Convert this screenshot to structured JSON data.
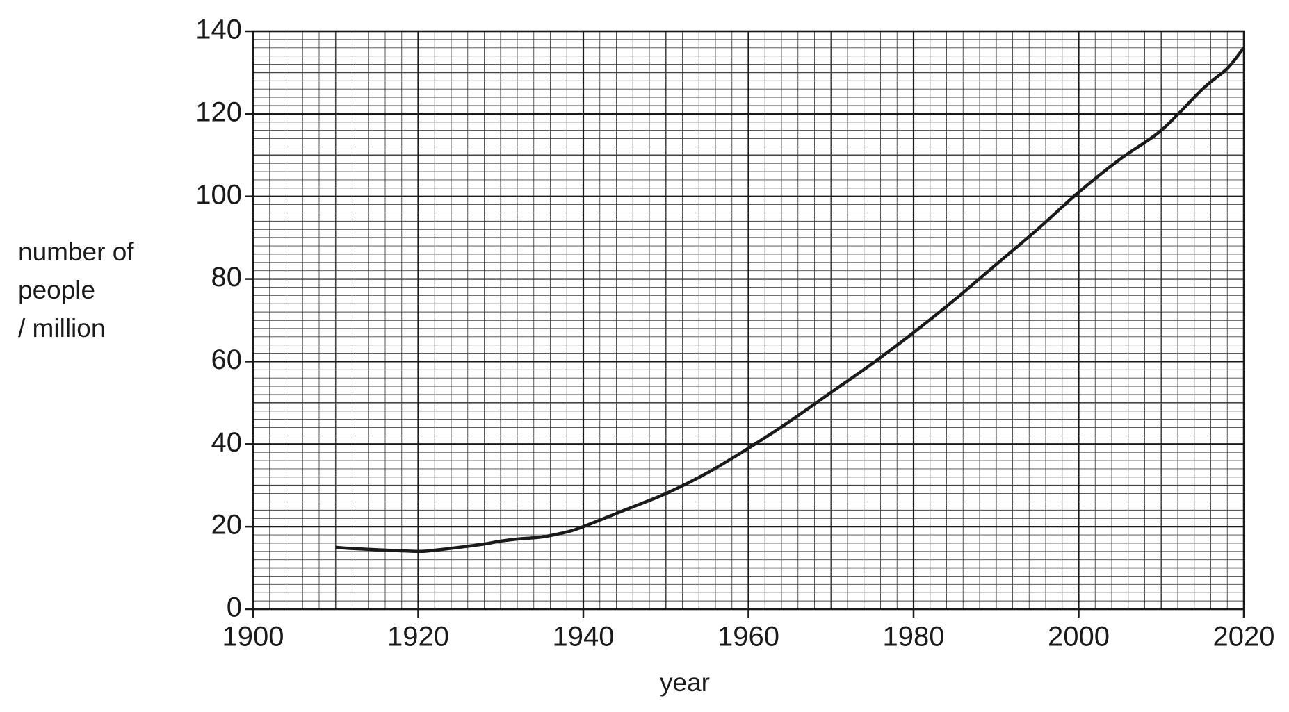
{
  "chart_data": {
    "type": "line",
    "xlabel": "year",
    "ylabel": [
      "number of",
      "people",
      "/ million"
    ],
    "x": [
      1910,
      1912,
      1915,
      1920,
      1922,
      1925,
      1928,
      1930,
      1932,
      1935,
      1938,
      1940,
      1945,
      1950,
      1955,
      1960,
      1965,
      1970,
      1975,
      1980,
      1985,
      1990,
      1995,
      2000,
      2005,
      2010,
      2015,
      2018,
      2020
    ],
    "values": [
      15,
      14.7,
      14.4,
      14,
      14.3,
      15,
      15.8,
      16.5,
      17,
      17.5,
      18.7,
      20,
      24,
      28,
      33,
      39,
      45.5,
      52.5,
      59.5,
      67,
      75,
      83.5,
      92,
      101,
      109,
      116,
      126,
      131,
      136
    ],
    "color": "#1a1a1a",
    "xlim": [
      1900,
      2020
    ],
    "xticks": [
      1900,
      1920,
      1940,
      1960,
      1980,
      2000,
      2020
    ],
    "ylim": [
      0,
      140
    ],
    "yticks": [
      0,
      20,
      40,
      60,
      80,
      100,
      120,
      140
    ],
    "grid": true,
    "minor_grid": true
  }
}
